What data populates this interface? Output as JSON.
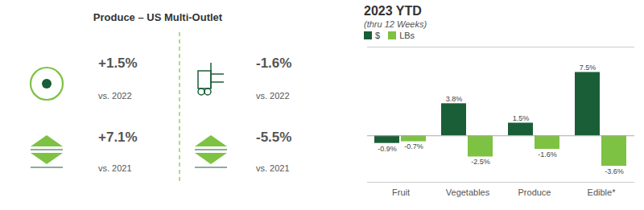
{
  "chart_data": {
    "type": "bar",
    "title": "2023 YTD",
    "subtitle": "(thru 12 Weeks)",
    "annotations": [
      "Produce – US Multi-Outlet",
      "+1.5%",
      "vs. 2022",
      "+7.1%",
      "vs. 2021",
      "-1.6%",
      "vs. 2022",
      "-5.5%",
      "vs. 2021"
    ],
    "categories": [
      "Fruit",
      "Vegetables",
      "Produce",
      "Edible*"
    ],
    "series": [
      {
        "name": "$",
        "color": "#1a5e37",
        "values": [
          -0.9,
          3.8,
          1.5,
          7.5
        ],
        "value_labels": [
          "-0.9%",
          "3.8%",
          "1.5%",
          "7.5%"
        ]
      },
      {
        "name": "LBs",
        "color": "#7dc242",
        "values": [
          -0.7,
          -2.5,
          -1.6,
          -3.6
        ],
        "value_labels": [
          "-0.7%",
          "-2.5%",
          "-1.6%",
          "-3.6%"
        ]
      }
    ],
    "ylim": [
      -5.5,
      10.5
    ],
    "data_labels": true,
    "tick_labels": "x",
    "legend": "upper left"
  }
}
